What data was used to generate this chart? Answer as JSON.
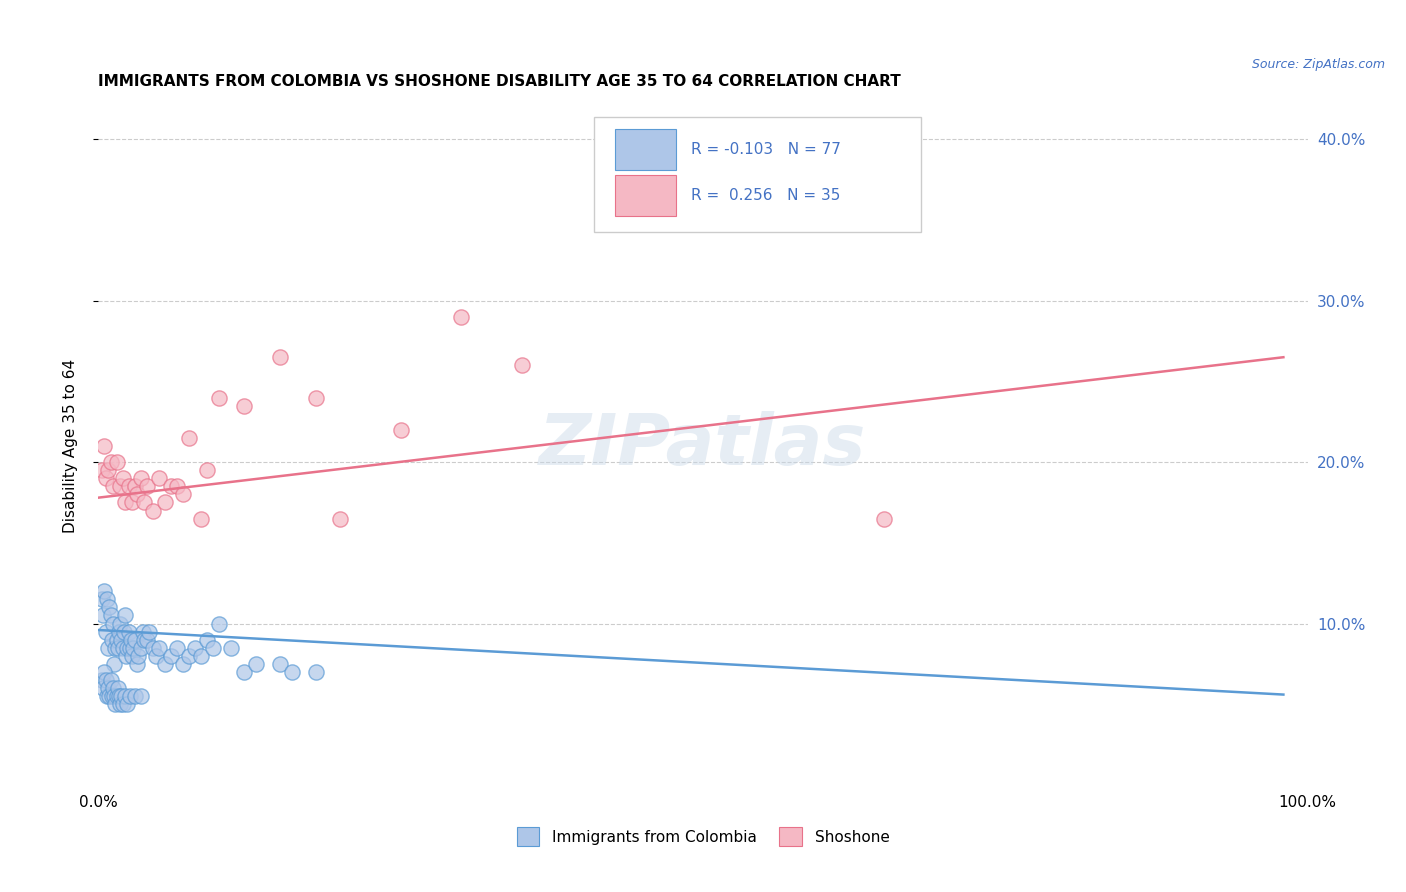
{
  "title": "IMMIGRANTS FROM COLOMBIA VS SHOSHONE DISABILITY AGE 35 TO 64 CORRELATION CHART",
  "source": "Source: ZipAtlas.com",
  "ylabel": "Disability Age 35 to 64",
  "xlim": [
    0,
    1.0
  ],
  "ylim": [
    0,
    0.42
  ],
  "xticks": [
    0.0,
    0.2,
    0.4,
    0.6,
    0.8,
    1.0
  ],
  "xticklabels": [
    "0.0%",
    "",
    "",
    "",
    "",
    "100.0%"
  ],
  "yticks_left": [
    0.1,
    0.2,
    0.3,
    0.4
  ],
  "yticks_right_labels": [
    "10.0%",
    "20.0%",
    "30.0%",
    "40.0%"
  ],
  "legend_r_colombia": "-0.103",
  "legend_n_colombia": "77",
  "legend_r_shoshone": "0.256",
  "legend_n_shoshone": "35",
  "color_colombia_fill": "#aec6e8",
  "color_colombia_edge": "#5b9bd5",
  "color_shoshone_fill": "#f5b8c4",
  "color_shoshone_edge": "#e8728a",
  "color_line_colombia": "#5b9bd5",
  "color_line_shoshone": "#e8728a",
  "watermark": "ZIPatlas",
  "colombia_points_x": [
    0.003,
    0.004,
    0.005,
    0.006,
    0.007,
    0.008,
    0.009,
    0.01,
    0.011,
    0.012,
    0.013,
    0.014,
    0.015,
    0.016,
    0.017,
    0.018,
    0.019,
    0.02,
    0.021,
    0.022,
    0.023,
    0.024,
    0.025,
    0.026,
    0.027,
    0.028,
    0.029,
    0.03,
    0.032,
    0.033,
    0.035,
    0.037,
    0.038,
    0.04,
    0.042,
    0.045,
    0.048,
    0.05,
    0.055,
    0.06,
    0.065,
    0.07,
    0.075,
    0.08,
    0.085,
    0.09,
    0.095,
    0.1,
    0.11,
    0.12,
    0.13,
    0.15,
    0.16,
    0.18,
    0.003,
    0.004,
    0.005,
    0.006,
    0.007,
    0.008,
    0.009,
    0.01,
    0.011,
    0.012,
    0.013,
    0.014,
    0.015,
    0.016,
    0.017,
    0.018,
    0.019,
    0.02,
    0.022,
    0.024,
    0.026,
    0.03,
    0.035
  ],
  "colombia_points_y": [
    0.115,
    0.105,
    0.12,
    0.095,
    0.115,
    0.085,
    0.11,
    0.105,
    0.09,
    0.1,
    0.075,
    0.085,
    0.09,
    0.085,
    0.095,
    0.1,
    0.09,
    0.085,
    0.095,
    0.105,
    0.08,
    0.085,
    0.095,
    0.085,
    0.09,
    0.08,
    0.085,
    0.09,
    0.075,
    0.08,
    0.085,
    0.095,
    0.09,
    0.09,
    0.095,
    0.085,
    0.08,
    0.085,
    0.075,
    0.08,
    0.085,
    0.075,
    0.08,
    0.085,
    0.08,
    0.09,
    0.085,
    0.1,
    0.085,
    0.07,
    0.075,
    0.075,
    0.07,
    0.07,
    0.065,
    0.06,
    0.07,
    0.065,
    0.055,
    0.06,
    0.055,
    0.065,
    0.055,
    0.06,
    0.055,
    0.05,
    0.055,
    0.06,
    0.055,
    0.05,
    0.055,
    0.05,
    0.055,
    0.05,
    0.055,
    0.055,
    0.055
  ],
  "shoshone_points_x": [
    0.003,
    0.005,
    0.006,
    0.008,
    0.01,
    0.012,
    0.015,
    0.018,
    0.02,
    0.022,
    0.025,
    0.028,
    0.03,
    0.032,
    0.035,
    0.038,
    0.04,
    0.045,
    0.05,
    0.055,
    0.06,
    0.065,
    0.07,
    0.075,
    0.085,
    0.09,
    0.1,
    0.12,
    0.15,
    0.18,
    0.2,
    0.25,
    0.3,
    0.35,
    0.65
  ],
  "shoshone_points_y": [
    0.195,
    0.21,
    0.19,
    0.195,
    0.2,
    0.185,
    0.2,
    0.185,
    0.19,
    0.175,
    0.185,
    0.175,
    0.185,
    0.18,
    0.19,
    0.175,
    0.185,
    0.17,
    0.19,
    0.175,
    0.185,
    0.185,
    0.18,
    0.215,
    0.165,
    0.195,
    0.24,
    0.235,
    0.265,
    0.24,
    0.165,
    0.22,
    0.29,
    0.26,
    0.165
  ],
  "colombia_trend_x": [
    0.0,
    0.98
  ],
  "colombia_trend_y": [
    0.096,
    0.056
  ],
  "shoshone_trend_x": [
    0.0,
    0.98
  ],
  "shoshone_trend_y": [
    0.178,
    0.265
  ]
}
